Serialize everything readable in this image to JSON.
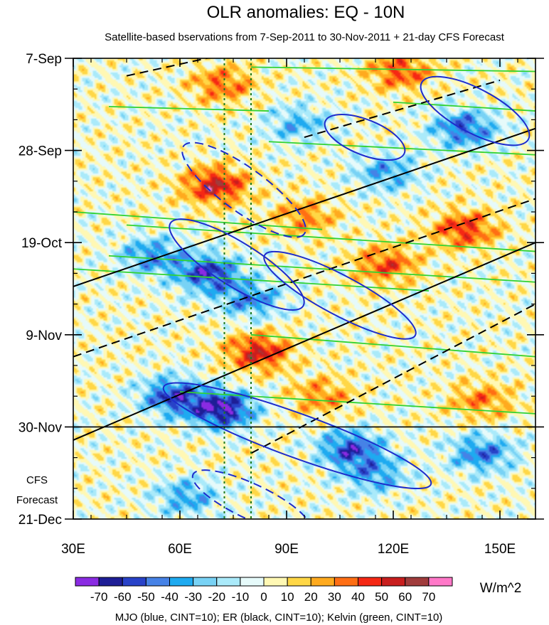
{
  "chart_data": {
    "type": "heatmap",
    "title": "OLR anomalies: EQ - 10N",
    "subtitle": "Satellite-based bservations from 7-Sep-2011 to 30-Nov-2011 + 21-day CFS Forecast",
    "x_axis": {
      "range": [
        30,
        160
      ],
      "ticks": [
        {
          "value": 30,
          "label": "30E"
        },
        {
          "value": 60,
          "label": "60E"
        },
        {
          "value": 90,
          "label": "90E"
        },
        {
          "value": 120,
          "label": "120E"
        },
        {
          "value": 150,
          "label": "150E"
        }
      ]
    },
    "y_axis": {
      "range_days": [
        0,
        105
      ],
      "ticks": [
        {
          "day": 0,
          "label": "7-Sep"
        },
        {
          "day": 21,
          "label": "28-Sep"
        },
        {
          "day": 42,
          "label": "19-Oct"
        },
        {
          "day": 63,
          "label": "9-Nov"
        },
        {
          "day": 84,
          "label": "30-Nov"
        },
        {
          "day": 105,
          "label": "21-Dec"
        }
      ],
      "forecast_label_1": "CFS",
      "forecast_label_2": "Forecast",
      "forecast_start_day": 84
    },
    "reference_lines_lon": [
      72.5,
      80
    ],
    "colorbar": {
      "unit": "W/m^2",
      "levels": [
        -70,
        -60,
        -50,
        -40,
        -30,
        -20,
        -10,
        0,
        10,
        20,
        30,
        40,
        50,
        60,
        70
      ],
      "colors": [
        "#8a2be2",
        "#1e1e96",
        "#2842c8",
        "#4682e6",
        "#1eaaf0",
        "#78d2f5",
        "#aaeafa",
        "#e6fafa",
        "#fff8b4",
        "#ffd746",
        "#ffaa1e",
        "#ff6e14",
        "#f52814",
        "#c81e1e",
        "#a03c3c",
        "#ff78c8"
      ]
    },
    "anomaly_centers": [
      {
        "lon": 70,
        "day": 29,
        "value": 55
      },
      {
        "lon": 82,
        "day": 67,
        "value": 52
      },
      {
        "lon": 72,
        "day": 6,
        "value": 35
      },
      {
        "lon": 122,
        "day": 3,
        "value": 40
      },
      {
        "lon": 140,
        "day": 39,
        "value": 45
      },
      {
        "lon": 118,
        "day": 47,
        "value": 40
      },
      {
        "lon": 95,
        "day": 36,
        "value": 30
      },
      {
        "lon": 100,
        "day": 77,
        "value": 30
      },
      {
        "lon": 145,
        "day": 78,
        "value": 30
      },
      {
        "lon": 68,
        "day": 49,
        "value": -60
      },
      {
        "lon": 72,
        "day": 80,
        "value": -70
      },
      {
        "lon": 58,
        "day": 77,
        "value": -55
      },
      {
        "lon": 108,
        "day": 89,
        "value": -55
      },
      {
        "lon": 140,
        "day": 16,
        "value": -50
      },
      {
        "lon": 145,
        "day": 90,
        "value": -45
      },
      {
        "lon": 80,
        "day": 55,
        "value": -40
      },
      {
        "lon": 52,
        "day": 45,
        "value": -40
      },
      {
        "lon": 93,
        "day": 15,
        "value": -30
      },
      {
        "lon": 118,
        "day": 26,
        "value": -35
      },
      {
        "lon": 62,
        "day": 100,
        "value": -35
      },
      {
        "lon": 115,
        "day": 95,
        "value": -35
      }
    ],
    "contours": {
      "mjo": {
        "color": "#1e2ccc",
        "ellipses": [
          {
            "lon": 112,
            "day": 18,
            "rx": 12,
            "ry": 4,
            "angle": 22,
            "sign": 1
          },
          {
            "lon": 143,
            "day": 12,
            "rx": 17,
            "ry": 5,
            "angle": 28,
            "sign": 1
          },
          {
            "lon": 78,
            "day": 30,
            "rx": 21,
            "ry": 5,
            "angle": 36,
            "sign": -1
          },
          {
            "lon": 76,
            "day": 47,
            "rx": 22,
            "ry": 5,
            "angle": 32,
            "sign": 1
          },
          {
            "lon": 105,
            "day": 54,
            "rx": 24,
            "ry": 4.5,
            "angle": 28,
            "sign": 1
          },
          {
            "lon": 93,
            "day": 86,
            "rx": 40,
            "ry": 5,
            "angle": 20,
            "sign": 1
          },
          {
            "lon": 80,
            "day": 101,
            "rx": 18,
            "ry": 4,
            "angle": 25,
            "sign": -1
          }
        ]
      },
      "er": {
        "color": "#000000",
        "lines": [
          {
            "x1": 30,
            "d1": 52,
            "x2": 160,
            "d2": 16,
            "dashed": false
          },
          {
            "x1": 30,
            "d1": 68,
            "x2": 160,
            "d2": 32,
            "dashed": true
          },
          {
            "x1": 30,
            "d1": 87,
            "x2": 160,
            "d2": 42,
            "dashed": false
          },
          {
            "x1": 80,
            "d1": 90,
            "x2": 160,
            "d2": 56,
            "dashed": true
          },
          {
            "x1": 45,
            "d1": 4,
            "x2": 90,
            "d2": -4,
            "dashed": true
          },
          {
            "x1": 95,
            "d1": 18,
            "x2": 150,
            "d2": 5,
            "dashed": true
          }
        ]
      },
      "kelvin": {
        "color": "#32d232",
        "lines": [
          {
            "x1": 40,
            "d1": 45,
            "x2": 160,
            "d2": 51
          },
          {
            "x1": 45,
            "d1": 38,
            "x2": 160,
            "d2": 44
          },
          {
            "x1": 30,
            "d1": 35,
            "x2": 100,
            "d2": 39
          },
          {
            "x1": 30,
            "d1": 48,
            "x2": 130,
            "d2": 53
          },
          {
            "x1": 80,
            "d1": 63,
            "x2": 160,
            "d2": 68
          },
          {
            "x1": 60,
            "d1": 76,
            "x2": 160,
            "d2": 81
          },
          {
            "x1": 80,
            "d1": 2,
            "x2": 160,
            "d2": 3
          },
          {
            "x1": 85,
            "d1": 19,
            "x2": 160,
            "d2": 22
          },
          {
            "x1": 40,
            "d1": 11,
            "x2": 85,
            "d2": 12
          },
          {
            "x1": 120,
            "d1": 10,
            "x2": 160,
            "d2": 12
          }
        ]
      }
    }
  },
  "footer_text": "MJO (blue, CINT=10); ER (black, CINT=10); Kelvin (green, CINT=10)"
}
